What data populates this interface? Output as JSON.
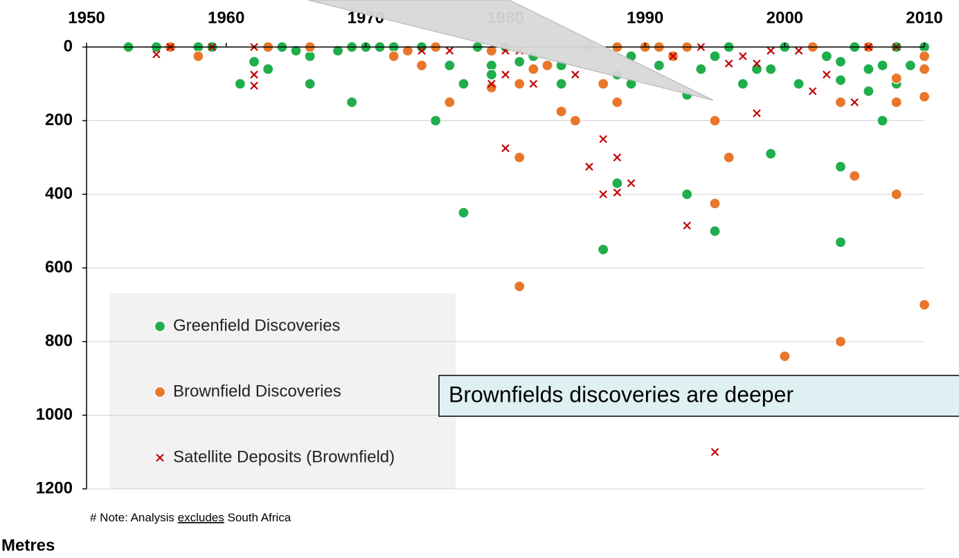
{
  "chart_data": {
    "type": "scatter",
    "xlim": [
      1950,
      2010
    ],
    "xticks": [
      1950,
      1960,
      1970,
      1980,
      1990,
      2000,
      2010
    ],
    "ylim": [
      0,
      1200
    ],
    "yticks": [
      0,
      200,
      400,
      600,
      800,
      1000,
      1200
    ],
    "y_reversed": true,
    "grid": true,
    "ylabel": "Metres",
    "note": [
      "# Note: Analysis",
      "excludes",
      "South Africa"
    ],
    "annotation": "Brownfields discoveries are deeper",
    "series": [
      {
        "name": "Greenfield Discoveries",
        "color": "#1fae4b",
        "marker": "circle",
        "x": [
          1953,
          1955,
          1958,
          1959,
          1961,
          1962,
          1963,
          1964,
          1965,
          1966,
          1966,
          1968,
          1969,
          1969,
          1970,
          1971,
          1972,
          1974,
          1975,
          1976,
          1977,
          1977,
          1978,
          1979,
          1979,
          1980,
          1981,
          1982,
          1984,
          1984,
          1987,
          1988,
          1988,
          1989,
          1989,
          1991,
          1992,
          1993,
          1993,
          1994,
          1995,
          1995,
          1996,
          1997,
          1998,
          1999,
          1999,
          2000,
          2001,
          2002,
          2003,
          2004,
          2004,
          2004,
          2004,
          2005,
          2006,
          2006,
          2007,
          2007,
          2008,
          2008,
          2009,
          2010
        ],
        "values": [
          0,
          0,
          0,
          0,
          100,
          40,
          60,
          0,
          10,
          25,
          100,
          10,
          0,
          150,
          0,
          0,
          0,
          0,
          200,
          50,
          100,
          450,
          0,
          50,
          75,
          0,
          40,
          25,
          100,
          50,
          550,
          75,
          370,
          100,
          25,
          50,
          25,
          130,
          400,
          60,
          500,
          25,
          0,
          100,
          60,
          290,
          60,
          0,
          100,
          0,
          25,
          40,
          90,
          325,
          530,
          0,
          120,
          60,
          200,
          50,
          0,
          100,
          50,
          0
        ]
      },
      {
        "name": "Brownfield Discoveries",
        "color": "#e8772a",
        "marker": "circle",
        "x": [
          1956,
          1958,
          1963,
          1966,
          1972,
          1973,
          1974,
          1975,
          1976,
          1979,
          1979,
          1981,
          1981,
          1981,
          1982,
          1983,
          1984,
          1985,
          1986,
          1987,
          1988,
          1988,
          1990,
          1991,
          1992,
          1993,
          1995,
          1995,
          1996,
          2000,
          2002,
          2004,
          2004,
          2005,
          2006,
          2008,
          2008,
          2008,
          2010,
          2010,
          2010,
          2010
        ],
        "values": [
          0,
          25,
          0,
          0,
          25,
          10,
          50,
          0,
          150,
          110,
          10,
          100,
          300,
          650,
          60,
          50,
          175,
          200,
          0,
          100,
          0,
          150,
          0,
          0,
          25,
          0,
          200,
          425,
          300,
          840,
          0,
          150,
          800,
          350,
          0,
          150,
          400,
          85,
          25,
          60,
          135,
          700
        ]
      },
      {
        "name": "Satellite Deposits (Brownfield)",
        "color": "#c00000",
        "marker": "x",
        "x": [
          1955,
          1956,
          1959,
          1962,
          1962,
          1962,
          1974,
          1976,
          1979,
          1980,
          1980,
          1980,
          1981,
          1982,
          1985,
          1986,
          1987,
          1987,
          1988,
          1988,
          1989,
          1992,
          1993,
          1994,
          1995,
          1996,
          1997,
          1998,
          1998,
          1999,
          2001,
          2002,
          2003,
          2005,
          2006,
          2008
        ],
        "values": [
          20,
          0,
          0,
          0,
          75,
          105,
          10,
          10,
          100,
          10,
          75,
          275,
          10,
          100,
          75,
          325,
          250,
          400,
          300,
          395,
          370,
          25,
          485,
          0,
          1100,
          45,
          25,
          180,
          45,
          10,
          10,
          120,
          75,
          150,
          0,
          0
        ]
      }
    ]
  }
}
